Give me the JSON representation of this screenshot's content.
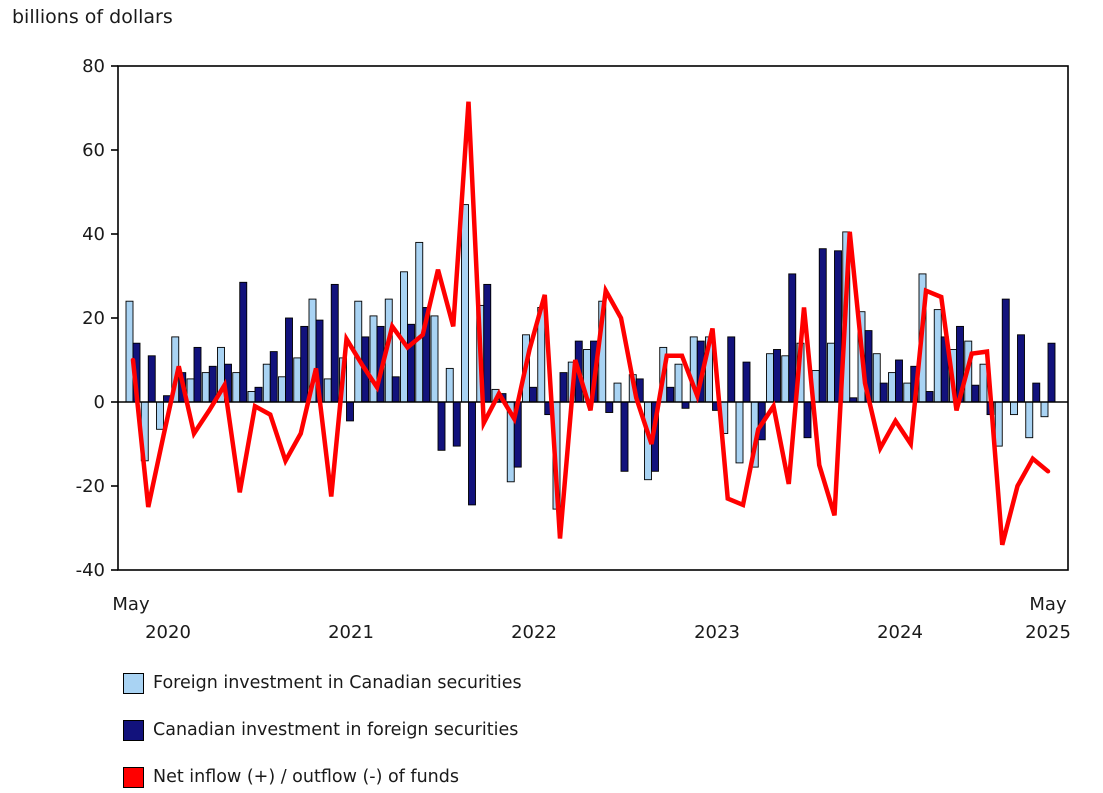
{
  "title": "billions of dollars",
  "chart_data": {
    "type": "bar+line combo, monthly series",
    "title": "billions of dollars",
    "x_axis": {
      "start_label_month": "May",
      "start_label_year": "2020",
      "end_label_month": "May",
      "end_label_year": "2025",
      "year_labels": [
        "2020",
        "2021",
        "2022",
        "2023",
        "2024"
      ],
      "months_span": "61 monthly values, May 2020 through May 2025"
    },
    "y_axis": {
      "ticks": [
        80,
        60,
        40,
        20,
        0,
        "-20",
        "-40"
      ],
      "ylim": [
        -40,
        80
      ],
      "grid": "none, zero baseline only"
    },
    "legend_position": "below chart, bottom-left",
    "series": [
      {
        "name": "Foreign investment in Canadian securities",
        "type": "bar",
        "color": "#A9D3F3",
        "values": [
          24,
          -14,
          -6.5,
          15.5,
          5.5,
          7,
          13,
          7,
          2.5,
          9,
          6,
          10.5,
          24.5,
          5.5,
          10.5,
          24,
          20.5,
          24.5,
          31,
          38,
          20.5,
          8,
          47,
          23,
          3,
          -19,
          16,
          22.5,
          -25.5,
          9.5,
          12.5,
          24,
          4.5,
          6.5,
          -18.5,
          13,
          9,
          15.5,
          15.5,
          -7.5,
          -14.5,
          -15.5,
          11.5,
          11,
          14,
          7.5,
          14,
          40.5,
          21.5,
          11.5,
          7,
          4.5,
          30.5,
          22,
          12.5,
          14.5,
          9,
          -10.5,
          -3,
          -8.5,
          -3.5
        ]
      },
      {
        "name": "Canadian investment in foreign securities",
        "type": "bar",
        "color": "#12127C",
        "values": [
          14,
          11,
          1.5,
          7,
          13,
          8.5,
          9,
          28.5,
          3.5,
          12,
          20,
          18,
          19.5,
          28,
          -4.5,
          15.5,
          18,
          6,
          18.5,
          22.5,
          -11.5,
          -10.5,
          -24.5,
          28,
          2,
          -15.5,
          3.5,
          -3,
          7,
          14.5,
          14.5,
          -2.5,
          -16.5,
          5.5,
          -16.5,
          3.5,
          -1.5,
          14.5,
          -2,
          15.5,
          9.5,
          -9,
          12.5,
          30.5,
          -8.5,
          36.5,
          36,
          1,
          17,
          4.5,
          10,
          8.5,
          2.5,
          15.5,
          18,
          4,
          -3,
          24.5,
          16,
          4.5,
          14
        ]
      },
      {
        "name": "Net inflow (+) / outflow (-) of funds",
        "type": "line",
        "color": "#FF0000",
        "values": [
          10,
          -25,
          -8,
          8.5,
          -7.5,
          -2,
          4,
          -21.5,
          -1,
          -3,
          -14,
          -7.5,
          8,
          -22.5,
          15,
          9,
          3.5,
          18,
          13,
          16,
          31.5,
          18,
          71.5,
          -5,
          2,
          -4,
          12.5,
          25.5,
          -32.5,
          10,
          -2,
          26.5,
          20,
          1,
          -10,
          11,
          11,
          1.5,
          17.5,
          -23,
          -24.5,
          -6.5,
          -1,
          -19.5,
          22.5,
          -15,
          -27,
          40.5,
          4.5,
          -11,
          -4.5,
          -10,
          26.5,
          25,
          -2,
          11.5,
          12,
          -34,
          -20,
          -13.5,
          -16.5
        ]
      }
    ]
  }
}
